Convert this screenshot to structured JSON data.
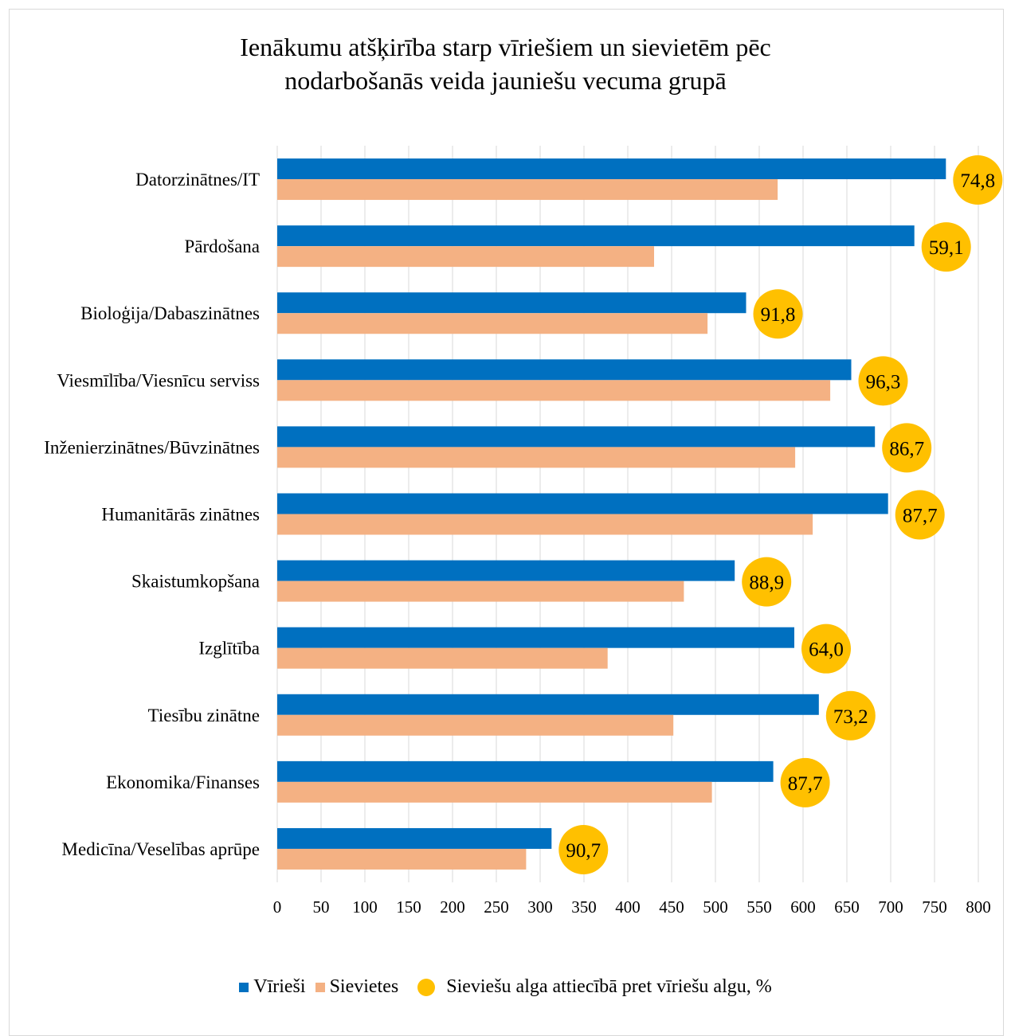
{
  "chart_data": {
    "type": "bar",
    "orientation": "horizontal",
    "title_lines": [
      "Ienākumu atšķirība starp vīriešiem un sievietēm pēc",
      "nodarbošanās veida jauniešu vecuma grupā"
    ],
    "categories": [
      "Datorzinātnes/IT",
      "Pārdošana",
      "Bioloģija/Dabaszinātnes",
      "Viesmīlība/Viesnīcu serviss",
      "Inženierzinātnes/Būvzinātnes",
      "Humanitārās zinātnes",
      "Skaistumkopšana",
      "Izglītība",
      "Tiesību zinātne",
      "Ekonomika/Finanses",
      "Medicīna/Veselības aprūpe"
    ],
    "series": [
      {
        "name": "Vīrieši",
        "color": "#0070c0",
        "values": [
          763,
          727,
          535,
          655,
          682,
          697,
          522,
          590,
          618,
          566,
          313
        ]
      },
      {
        "name": "Sievietes",
        "color": "#f4b183",
        "values": [
          571,
          430,
          491,
          631,
          591,
          611,
          464,
          377,
          452,
          496,
          284
        ]
      }
    ],
    "ratio_series": {
      "name": "Sieviešu alga attiecībā pret vīriešu algu, %",
      "color": "#ffc000",
      "labels": [
        "74,8",
        "59,1",
        "91,8",
        "96,3",
        "86,7",
        "87,7",
        "88,9",
        "64,0",
        "73,2",
        "87,7",
        "90,7"
      ],
      "values": [
        74.8,
        59.1,
        91.8,
        96.3,
        86.7,
        87.7,
        88.9,
        64.0,
        73.2,
        87.7,
        90.7
      ]
    },
    "xlim": [
      0,
      800
    ],
    "xticks": [
      0,
      50,
      100,
      150,
      200,
      250,
      300,
      350,
      400,
      450,
      500,
      550,
      600,
      650,
      700,
      750,
      800
    ],
    "grid": true,
    "legend_position": "bottom"
  }
}
